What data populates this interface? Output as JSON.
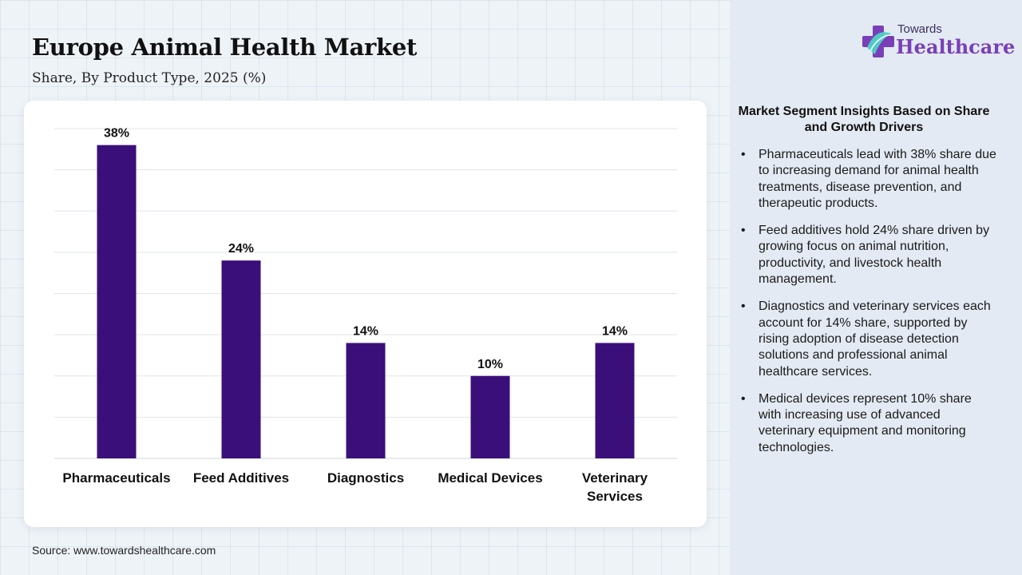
{
  "header": {
    "title": "Europe Animal Health Market",
    "subtitle": "Share, By Product Type, 2025 (%)"
  },
  "chart_data": {
    "type": "bar",
    "categories": [
      "Pharmaceuticals",
      "Feed Additives",
      "Diagnostics",
      "Medical Devices",
      "Veterinary Services"
    ],
    "values": [
      38,
      24,
      14,
      10,
      14
    ],
    "data_labels": [
      "38%",
      "24%",
      "14%",
      "10%",
      "14%"
    ],
    "ylim": [
      0,
      40
    ],
    "grid": true,
    "bar_color": "#3b0f7a",
    "xlabel": "",
    "ylabel": ""
  },
  "source": "Source: www.towardshealthcare.com",
  "logo": {
    "line1": "Towards",
    "line2": "Healthcare",
    "icon": "cross-logo-icon"
  },
  "insights": {
    "title": "Market Segment Insights Based on Share and Growth Drivers",
    "items": [
      "Pharmaceuticals lead with 38% share due to increasing demand for animal health treatments, disease prevention, and therapeutic products.",
      "Feed additives hold 24% share driven by growing focus on animal nutrition, productivity, and livestock health management.",
      "Diagnostics and veterinary services each account for 14% share, supported by rising adoption of disease detection solutions and professional animal healthcare services.",
      "Medical devices represent 10% share with increasing use of advanced veterinary equipment and monitoring technologies."
    ]
  }
}
